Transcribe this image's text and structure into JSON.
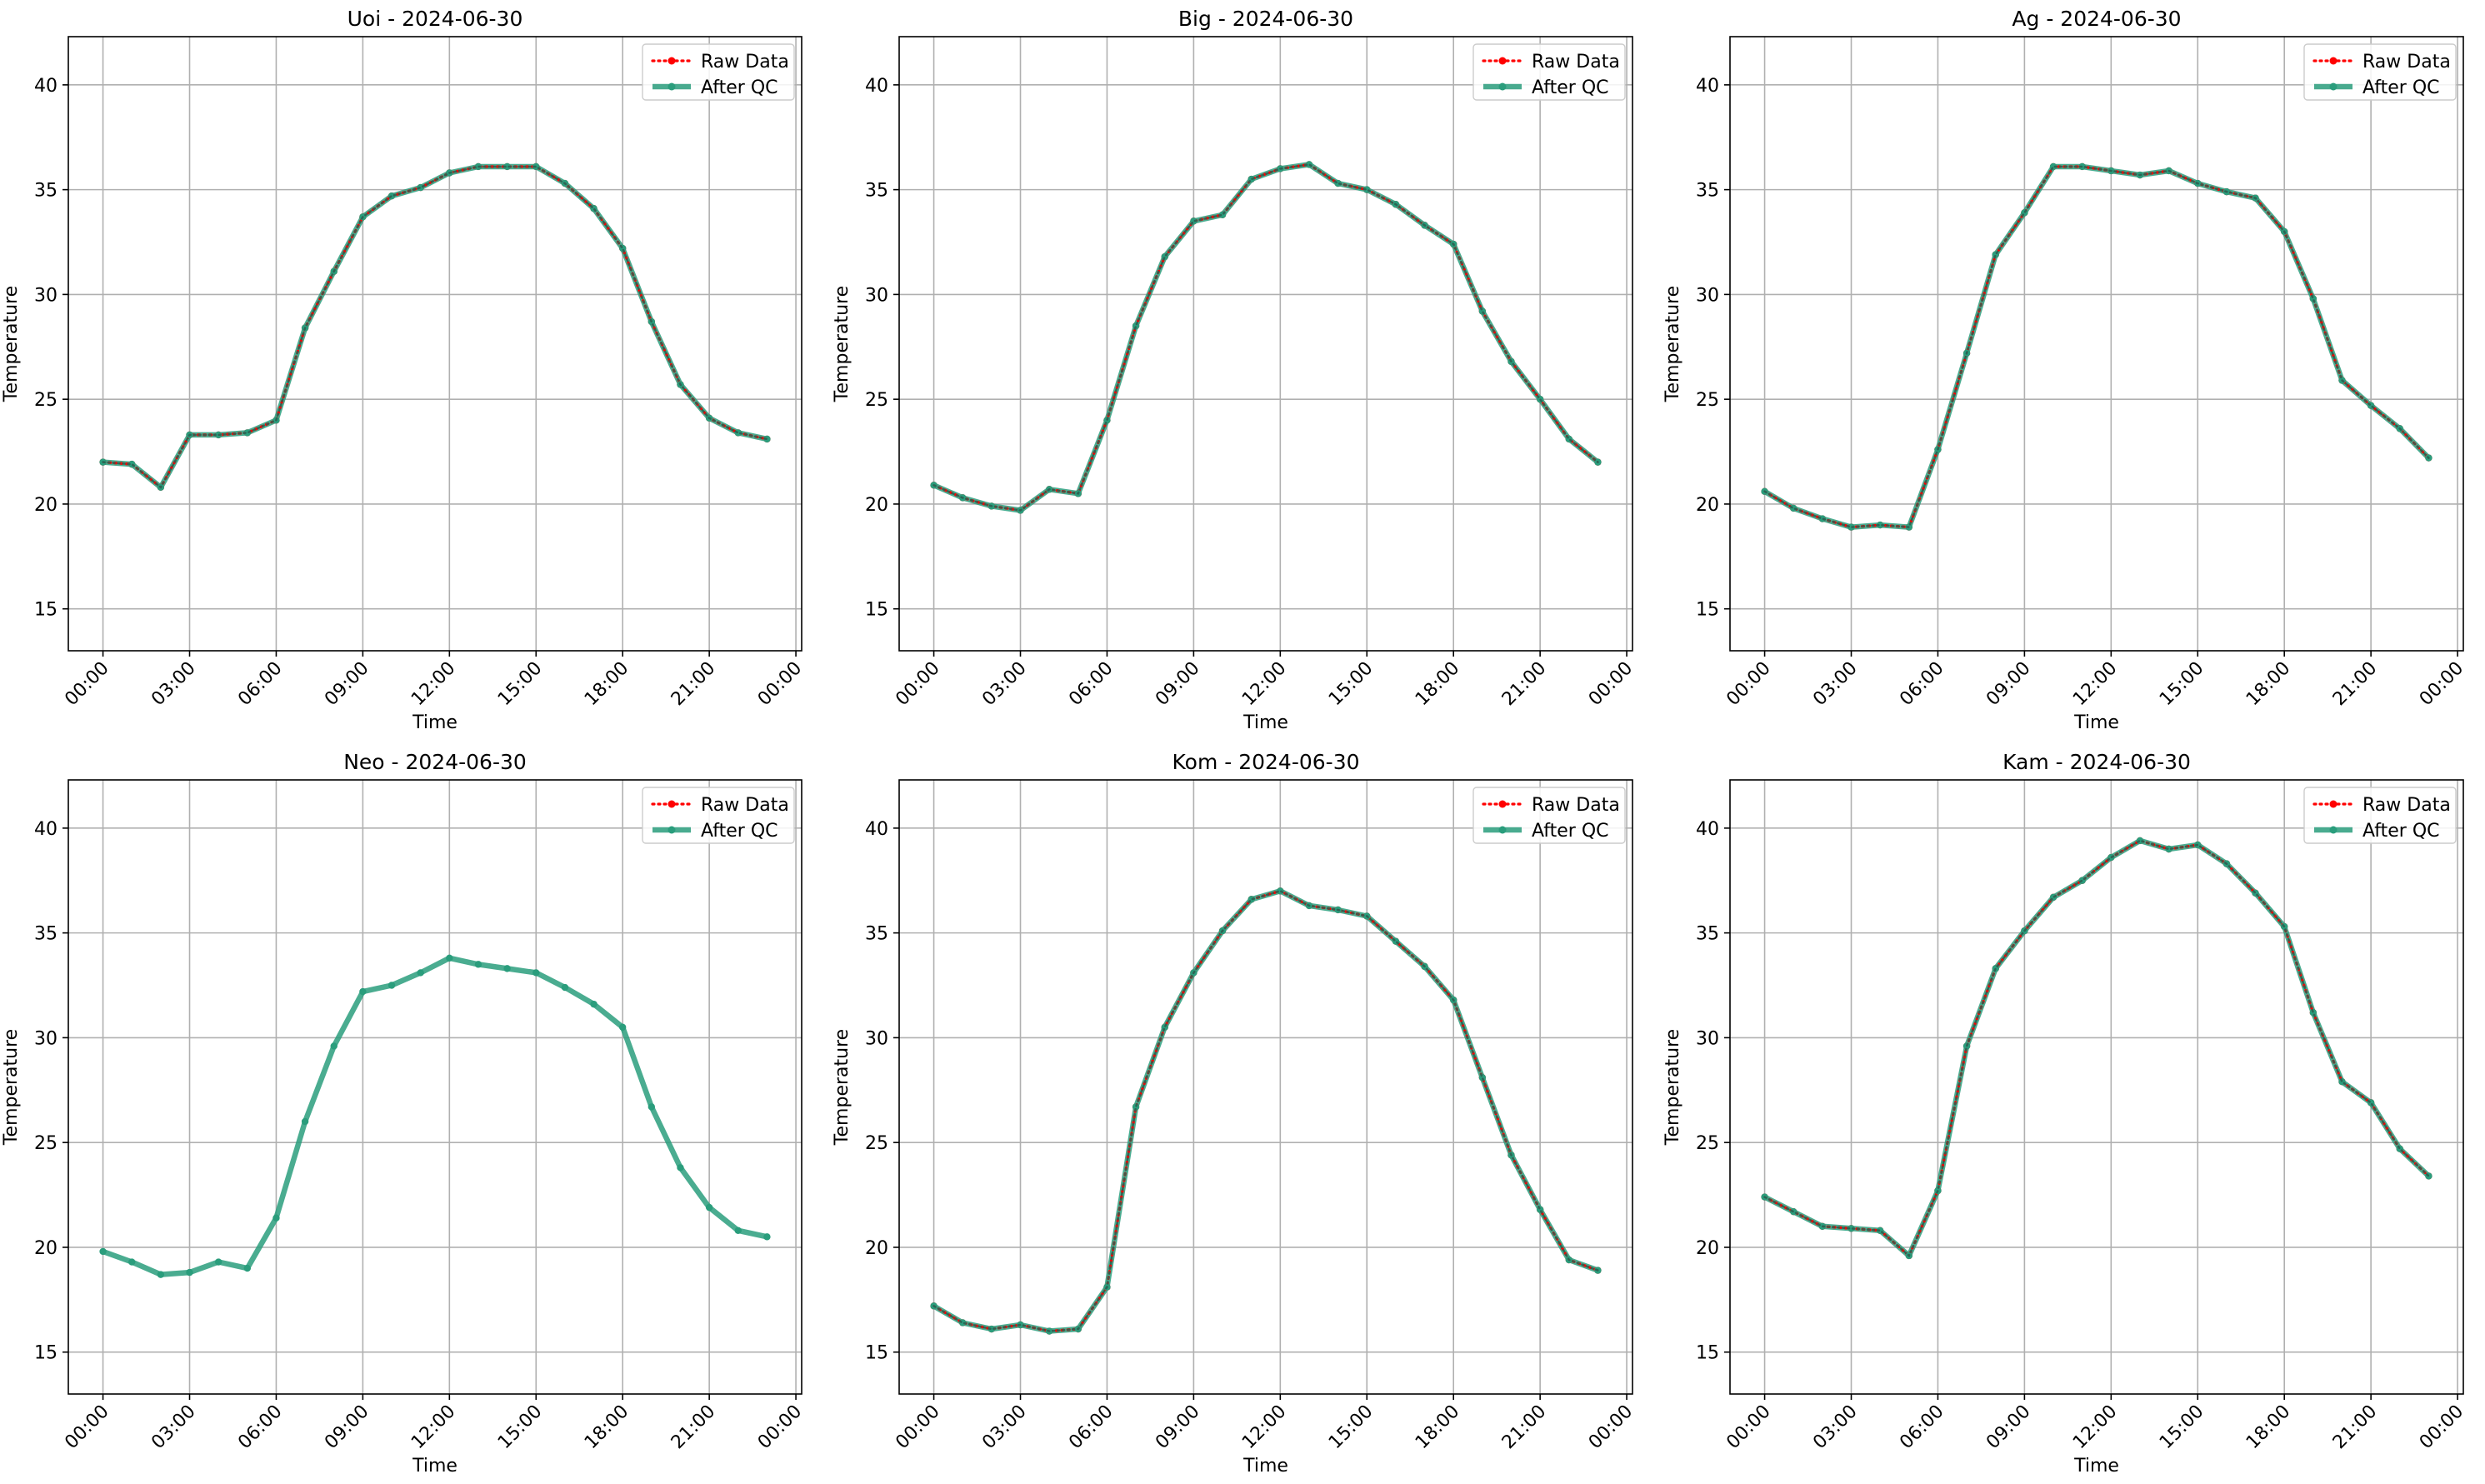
{
  "colors": {
    "raw": "#ff0000",
    "qc": "#2a9d7c",
    "grid": "#b0b0b0",
    "axis": "#000000",
    "background": "#ffffff"
  },
  "chart_data": [
    {
      "type": "line",
      "title": "Uoi - 2024-06-30",
      "xlabel": "Time",
      "ylabel": "Temperature",
      "x_tick_labels": [
        "00:00",
        "03:00",
        "06:00",
        "09:00",
        "12:00",
        "15:00",
        "18:00",
        "21:00",
        "00:00"
      ],
      "x_ticks_hours": [
        0,
        3,
        6,
        9,
        12,
        15,
        18,
        21,
        24
      ],
      "x_range_hours": [
        -1.2,
        24.2
      ],
      "y_ticks": [
        15,
        20,
        25,
        30,
        35,
        40
      ],
      "ylim": [
        13,
        42.3
      ],
      "grid": true,
      "legend_position": "top-right",
      "x_hours": [
        0,
        1,
        2,
        3,
        4,
        5,
        6,
        7,
        8,
        9,
        10,
        11,
        12,
        13,
        14,
        15,
        16,
        17,
        18,
        19,
        20,
        21,
        22,
        23
      ],
      "series": [
        {
          "name": "Raw Data",
          "style": "dotted",
          "values": [
            22.0,
            21.9,
            20.8,
            23.3,
            23.3,
            23.4,
            24.0,
            28.4,
            31.1,
            33.7,
            34.7,
            35.1,
            35.8,
            36.1,
            36.1,
            36.1,
            35.3,
            34.1,
            32.2,
            28.7,
            25.7,
            24.1,
            23.4,
            23.1
          ]
        },
        {
          "name": "After QC",
          "style": "solid",
          "values": [
            22.0,
            21.9,
            20.8,
            23.3,
            23.3,
            23.4,
            24.0,
            28.4,
            31.1,
            33.7,
            34.7,
            35.1,
            35.8,
            36.1,
            36.1,
            36.1,
            35.3,
            34.1,
            32.2,
            28.7,
            25.7,
            24.1,
            23.4,
            23.1
          ]
        }
      ]
    },
    {
      "type": "line",
      "title": "Big - 2024-06-30",
      "xlabel": "Time",
      "ylabel": "Temperature",
      "x_tick_labels": [
        "00:00",
        "03:00",
        "06:00",
        "09:00",
        "12:00",
        "15:00",
        "18:00",
        "21:00",
        "00:00"
      ],
      "x_ticks_hours": [
        0,
        3,
        6,
        9,
        12,
        15,
        18,
        21,
        24
      ],
      "x_range_hours": [
        -1.2,
        24.2
      ],
      "y_ticks": [
        15,
        20,
        25,
        30,
        35,
        40
      ],
      "ylim": [
        13,
        42.3
      ],
      "grid": true,
      "legend_position": "top-right",
      "x_hours": [
        0,
        1,
        2,
        3,
        4,
        5,
        6,
        7,
        8,
        9,
        10,
        11,
        12,
        13,
        14,
        15,
        16,
        17,
        18,
        19,
        20,
        21,
        22,
        23
      ],
      "series": [
        {
          "name": "Raw Data",
          "style": "dotted",
          "values": [
            20.9,
            20.3,
            19.9,
            19.7,
            20.7,
            20.5,
            24.0,
            28.5,
            31.8,
            33.5,
            33.8,
            35.5,
            36.0,
            36.2,
            35.3,
            35.0,
            34.3,
            33.3,
            32.4,
            29.2,
            26.8,
            25.0,
            23.1,
            22.0
          ]
        },
        {
          "name": "After QC",
          "style": "solid",
          "values": [
            20.9,
            20.3,
            19.9,
            19.7,
            20.7,
            20.5,
            24.0,
            28.5,
            31.8,
            33.5,
            33.8,
            35.5,
            36.0,
            36.2,
            35.3,
            35.0,
            34.3,
            33.3,
            32.4,
            29.2,
            26.8,
            25.0,
            23.1,
            22.0
          ]
        }
      ]
    },
    {
      "type": "line",
      "title": "Ag - 2024-06-30",
      "xlabel": "Time",
      "ylabel": "Temperature",
      "x_tick_labels": [
        "00:00",
        "03:00",
        "06:00",
        "09:00",
        "12:00",
        "15:00",
        "18:00",
        "21:00",
        "00:00"
      ],
      "x_ticks_hours": [
        0,
        3,
        6,
        9,
        12,
        15,
        18,
        21,
        24
      ],
      "x_range_hours": [
        -1.2,
        24.2
      ],
      "y_ticks": [
        15,
        20,
        25,
        30,
        35,
        40
      ],
      "ylim": [
        13,
        42.3
      ],
      "grid": true,
      "legend_position": "top-right",
      "x_hours": [
        0,
        1,
        2,
        3,
        4,
        5,
        6,
        7,
        8,
        9,
        10,
        11,
        12,
        13,
        14,
        15,
        16,
        17,
        18,
        19,
        20,
        21,
        22,
        23
      ],
      "series": [
        {
          "name": "Raw Data",
          "style": "dotted",
          "values": [
            20.6,
            19.8,
            19.3,
            18.9,
            19.0,
            18.9,
            22.6,
            27.2,
            31.9,
            33.9,
            36.1,
            36.1,
            35.9,
            35.7,
            35.9,
            35.3,
            34.9,
            34.6,
            33.0,
            29.8,
            25.9,
            24.7,
            23.6,
            22.2
          ]
        },
        {
          "name": "After QC",
          "style": "solid",
          "values": [
            20.6,
            19.8,
            19.3,
            18.9,
            19.0,
            18.9,
            22.6,
            27.2,
            31.9,
            33.9,
            36.1,
            36.1,
            35.9,
            35.7,
            35.9,
            35.3,
            34.9,
            34.6,
            33.0,
            29.8,
            25.9,
            24.7,
            23.6,
            22.2
          ]
        }
      ]
    },
    {
      "type": "line",
      "title": "Neo - 2024-06-30",
      "xlabel": "Time",
      "ylabel": "Temperature",
      "x_tick_labels": [
        "00:00",
        "03:00",
        "06:00",
        "09:00",
        "12:00",
        "15:00",
        "18:00",
        "21:00",
        "00:00"
      ],
      "x_ticks_hours": [
        0,
        3,
        6,
        9,
        12,
        15,
        18,
        21,
        24
      ],
      "x_range_hours": [
        -1.2,
        24.2
      ],
      "y_ticks": [
        15,
        20,
        25,
        30,
        35,
        40
      ],
      "ylim": [
        13,
        42.3
      ],
      "grid": true,
      "legend_position": "top-right",
      "x_hours": [
        0,
        1,
        2,
        3,
        4,
        5,
        6,
        7,
        8,
        9,
        10,
        11,
        12,
        13,
        14,
        15,
        16,
        17,
        18,
        19,
        20,
        21,
        22,
        23
      ],
      "series": [
        {
          "name": "Raw Data",
          "style": "dotted",
          "values": []
        },
        {
          "name": "After QC",
          "style": "solid",
          "values": [
            19.8,
            19.3,
            18.7,
            18.8,
            19.3,
            19.0,
            21.4,
            26.0,
            29.6,
            32.2,
            32.5,
            33.1,
            33.8,
            33.5,
            33.3,
            33.1,
            32.4,
            31.6,
            30.5,
            26.7,
            23.8,
            21.9,
            20.8,
            20.5
          ]
        }
      ]
    },
    {
      "type": "line",
      "title": "Kom - 2024-06-30",
      "xlabel": "Time",
      "ylabel": "Temperature",
      "x_tick_labels": [
        "00:00",
        "03:00",
        "06:00",
        "09:00",
        "12:00",
        "15:00",
        "18:00",
        "21:00",
        "00:00"
      ],
      "x_ticks_hours": [
        0,
        3,
        6,
        9,
        12,
        15,
        18,
        21,
        24
      ],
      "x_range_hours": [
        -1.2,
        24.2
      ],
      "y_ticks": [
        15,
        20,
        25,
        30,
        35,
        40
      ],
      "ylim": [
        13,
        42.3
      ],
      "grid": true,
      "legend_position": "top-right",
      "x_hours": [
        0,
        1,
        2,
        3,
        4,
        5,
        6,
        7,
        8,
        9,
        10,
        11,
        12,
        13,
        14,
        15,
        16,
        17,
        18,
        19,
        20,
        21,
        22,
        23
      ],
      "series": [
        {
          "name": "Raw Data",
          "style": "dotted",
          "values": [
            17.2,
            16.4,
            16.1,
            16.3,
            16.0,
            16.1,
            18.1,
            26.7,
            30.5,
            33.1,
            35.1,
            36.6,
            37.0,
            36.3,
            36.1,
            35.8,
            34.6,
            33.4,
            31.8,
            28.1,
            24.4,
            21.8,
            19.4,
            18.9
          ]
        },
        {
          "name": "After QC",
          "style": "solid",
          "values": [
            17.2,
            16.4,
            16.1,
            16.3,
            16.0,
            16.1,
            18.1,
            26.7,
            30.5,
            33.1,
            35.1,
            36.6,
            37.0,
            36.3,
            36.1,
            35.8,
            34.6,
            33.4,
            31.8,
            28.1,
            24.4,
            21.8,
            19.4,
            18.9
          ]
        }
      ]
    },
    {
      "type": "line",
      "title": "Kam - 2024-06-30",
      "xlabel": "Time",
      "ylabel": "Temperature",
      "x_tick_labels": [
        "00:00",
        "03:00",
        "06:00",
        "09:00",
        "12:00",
        "15:00",
        "18:00",
        "21:00",
        "00:00"
      ],
      "x_ticks_hours": [
        0,
        3,
        6,
        9,
        12,
        15,
        18,
        21,
        24
      ],
      "x_range_hours": [
        -1.2,
        24.2
      ],
      "y_ticks": [
        15,
        20,
        25,
        30,
        35,
        40
      ],
      "ylim": [
        13,
        42.3
      ],
      "grid": true,
      "legend_position": "top-right",
      "x_hours": [
        0,
        1,
        2,
        3,
        4,
        5,
        6,
        7,
        8,
        9,
        10,
        11,
        12,
        13,
        14,
        15,
        16,
        17,
        18,
        19,
        20,
        21,
        22,
        23
      ],
      "series": [
        {
          "name": "Raw Data",
          "style": "dotted",
          "values": [
            22.4,
            21.7,
            21.0,
            20.9,
            20.8,
            19.6,
            22.7,
            29.6,
            33.3,
            35.1,
            36.7,
            37.5,
            38.6,
            39.4,
            39.0,
            39.2,
            38.3,
            36.9,
            35.3,
            31.2,
            27.9,
            26.9,
            24.7,
            23.4
          ]
        },
        {
          "name": "After QC",
          "style": "solid",
          "values": [
            22.4,
            21.7,
            21.0,
            20.9,
            20.8,
            19.6,
            22.7,
            29.6,
            33.3,
            35.1,
            36.7,
            37.5,
            38.6,
            39.4,
            39.0,
            39.2,
            38.3,
            36.9,
            35.3,
            31.2,
            27.9,
            26.9,
            24.7,
            23.4
          ]
        }
      ]
    }
  ]
}
